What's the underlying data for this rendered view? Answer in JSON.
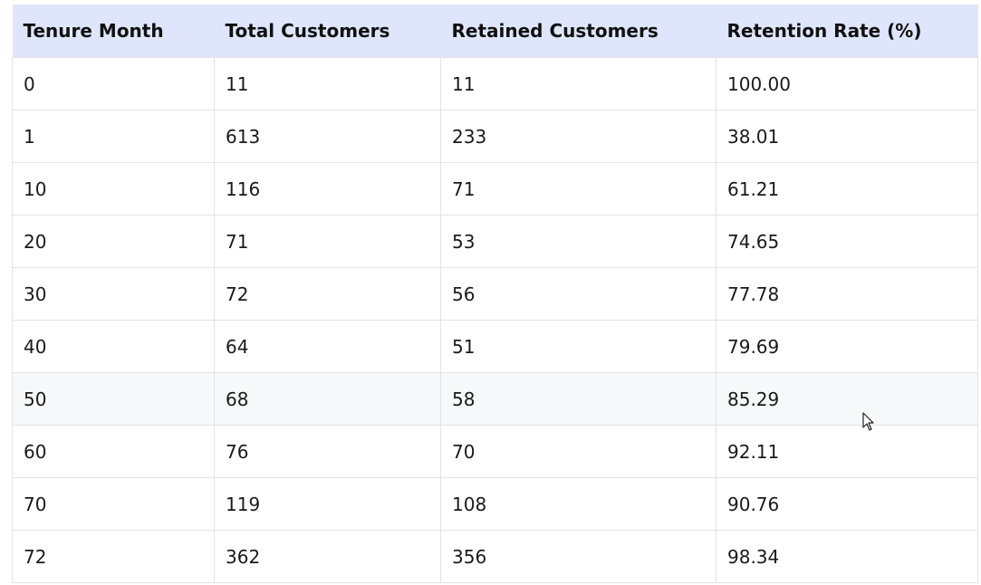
{
  "table": {
    "headers": [
      "Tenure Month",
      "Total Customers",
      "Retained Customers",
      "Retention Rate (%)"
    ],
    "rows": [
      [
        "0",
        "11",
        "11",
        "100.00"
      ],
      [
        "1",
        "613",
        "233",
        "38.01"
      ],
      [
        "10",
        "116",
        "71",
        "61.21"
      ],
      [
        "20",
        "71",
        "53",
        "74.65"
      ],
      [
        "30",
        "72",
        "56",
        "77.78"
      ],
      [
        "40",
        "64",
        "51",
        "79.69"
      ],
      [
        "50",
        "68",
        "58",
        "85.29"
      ],
      [
        "60",
        "76",
        "70",
        "92.11"
      ],
      [
        "70",
        "119",
        "108",
        "90.76"
      ],
      [
        "72",
        "362",
        "356",
        "98.34"
      ]
    ],
    "hovered_row_index": 6
  },
  "colors": {
    "header_bg": "#dfe6fc",
    "hover_row_bg": "#f7f8fa",
    "border": "#e3e3e3"
  },
  "cursor_icon": "mouse-pointer-icon"
}
